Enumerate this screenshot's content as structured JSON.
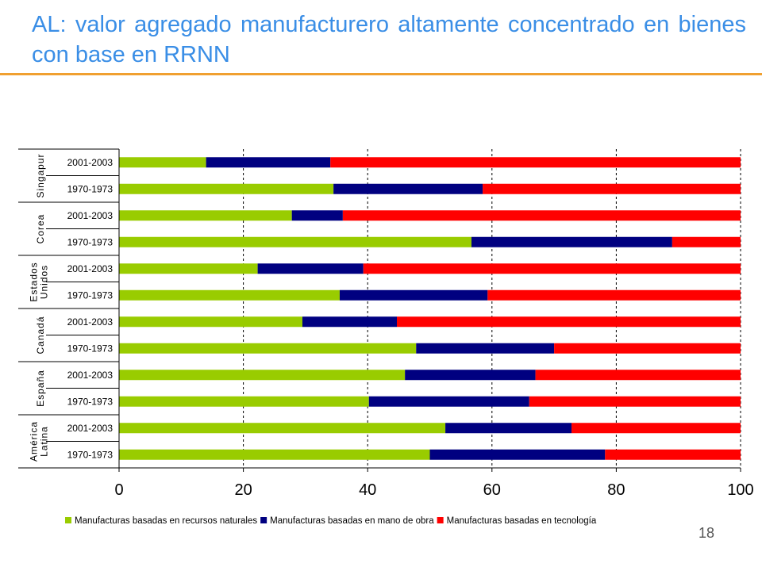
{
  "slide": {
    "title": "AL: valor agregado manufacturero altamente concentrado en bienes con base en RRNN",
    "page_number": "18"
  },
  "colors": {
    "natural": "#99cc00",
    "labor": "#000080",
    "tech": "#ff0000",
    "title": "#3a8ee6",
    "rule": "#f0a030"
  },
  "chart_data": {
    "type": "bar",
    "orientation": "horizontal",
    "stacked": true,
    "xlim": [
      0,
      100
    ],
    "xticks": [
      "0",
      "20",
      "40",
      "60",
      "80",
      "100"
    ],
    "grid": "vertical dashed",
    "legend_position": "bottom",
    "groups": [
      {
        "name_lines": [
          "Singapur"
        ],
        "periods": [
          "2001-2003",
          "1970-1973"
        ]
      },
      {
        "name_lines": [
          "Corea"
        ],
        "periods": [
          "2001-2003",
          "1970-1973"
        ]
      },
      {
        "name_lines": [
          "Estados",
          "Unidos"
        ],
        "periods": [
          "2001-2003",
          "1970-1973"
        ]
      },
      {
        "name_lines": [
          "Canadá"
        ],
        "periods": [
          "2001-2003",
          "1970-1973"
        ]
      },
      {
        "name_lines": [
          "España"
        ],
        "periods": [
          "2001-2003",
          "1970-1973"
        ]
      },
      {
        "name_lines": [
          "América",
          "Latina"
        ],
        "periods": [
          "2001-2003",
          "1970-1973"
        ]
      }
    ],
    "series": [
      {
        "name": "Manufacturas basadas en recursos naturales",
        "color_key": "natural",
        "values": [
          14,
          34.5,
          27.8,
          56.7,
          22.3,
          35.5,
          29.5,
          47.8,
          46,
          40.2,
          52.5,
          50
        ]
      },
      {
        "name": "Manufacturas basadas en mano de obra",
        "color_key": "labor",
        "values": [
          20,
          24,
          8.2,
          32.3,
          17,
          23.8,
          15.2,
          22.2,
          21,
          25.8,
          20.3,
          28.2
        ]
      },
      {
        "name": "Manufacturas basadas en tecnología",
        "color_key": "tech",
        "values": [
          66,
          41.5,
          64,
          11,
          60.7,
          40.7,
          55.3,
          30,
          33,
          34,
          27.2,
          21.8
        ]
      }
    ]
  }
}
